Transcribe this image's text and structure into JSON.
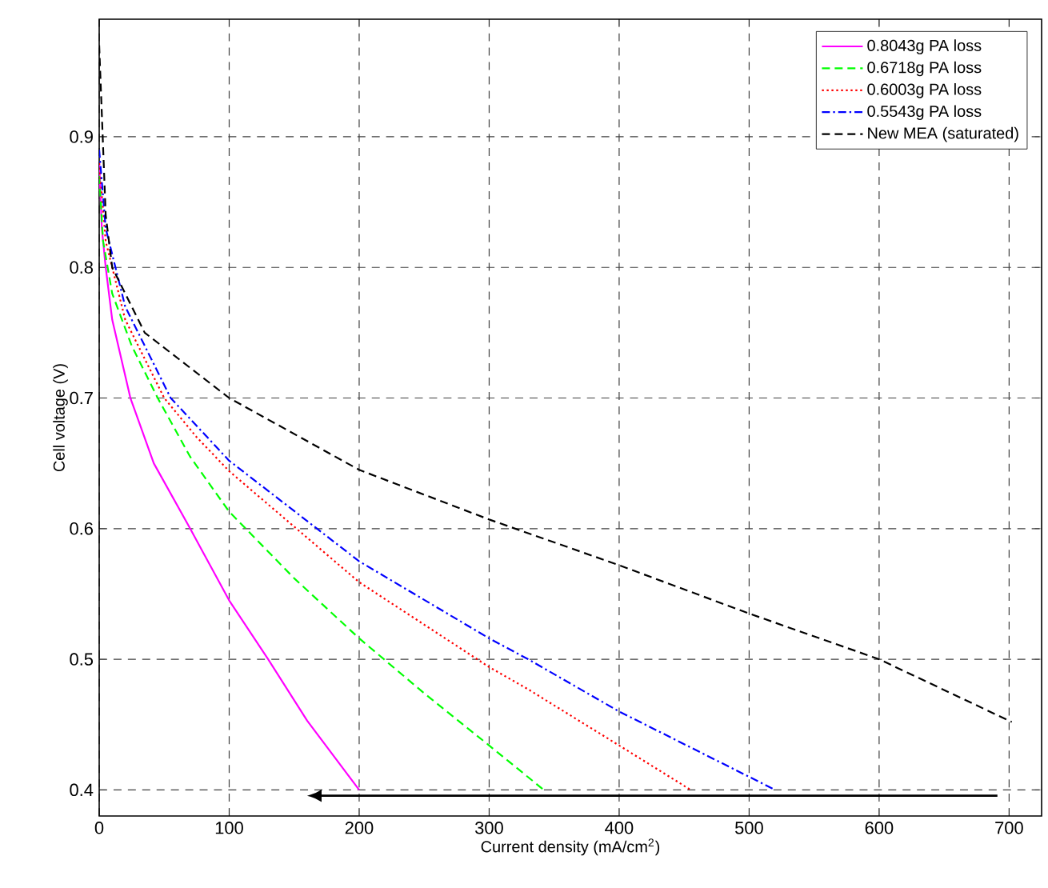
{
  "chart_data": {
    "type": "line",
    "xlabel": "Current density (mA/cm$^{2}$)",
    "ylabel": "Cell voltage (V)",
    "xlim": [
      0,
      725
    ],
    "ylim": [
      0.38,
      0.99
    ],
    "xticks": [
      0,
      100,
      200,
      300,
      400,
      500,
      600,
      700
    ],
    "yticks": [
      0.4,
      0.5,
      0.6,
      0.7,
      0.8,
      0.9
    ],
    "grid": true,
    "legend": "top right",
    "series": [
      {
        "name": "0.8043g PA loss",
        "color": "#ff00ff",
        "line_style": "solid",
        "x": [
          0,
          2,
          5,
          10,
          24,
          42,
          70,
          100,
          130,
          160,
          200
        ],
        "values": [
          0.88,
          0.83,
          0.8,
          0.76,
          0.7,
          0.65,
          0.6,
          0.545,
          0.5,
          0.453,
          0.4
        ]
      },
      {
        "name": "0.6718g PA loss",
        "color": "#00ff00",
        "line_style": "dashed",
        "x": [
          0,
          3,
          10,
          25,
          45,
          70,
          100,
          150,
          200,
          250,
          300,
          342
        ],
        "values": [
          0.87,
          0.82,
          0.78,
          0.74,
          0.7,
          0.655,
          0.613,
          0.562,
          0.516,
          0.474,
          0.434,
          0.4
        ]
      },
      {
        "name": "0.6003g PA loss",
        "color": "#ff0000",
        "line_style": "dotted",
        "x": [
          0,
          5,
          20,
          50,
          75,
          100,
          200,
          300,
          330,
          400,
          455
        ],
        "values": [
          0.88,
          0.82,
          0.76,
          0.7,
          0.67,
          0.644,
          0.559,
          0.494,
          0.477,
          0.434,
          0.4
        ]
      },
      {
        "name": "0.5543g PA loss",
        "color": "#0000ff",
        "line_style": "dashdot",
        "x": [
          0,
          5,
          20,
          55,
          100,
          200,
          300,
          330,
          400,
          520
        ],
        "values": [
          0.89,
          0.83,
          0.77,
          0.7,
          0.652,
          0.575,
          0.516,
          0.5,
          0.46,
          0.4
        ]
      },
      {
        "name": "New MEA (saturated)",
        "color": "#000000",
        "line_style": "dashed",
        "x": [
          0,
          5,
          10,
          35,
          100,
          200,
          300,
          400,
          500,
          600,
          702
        ],
        "values": [
          0.97,
          0.84,
          0.8,
          0.75,
          0.7,
          0.645,
          0.607,
          0.572,
          0.535,
          0.5,
          0.452
        ]
      }
    ]
  }
}
